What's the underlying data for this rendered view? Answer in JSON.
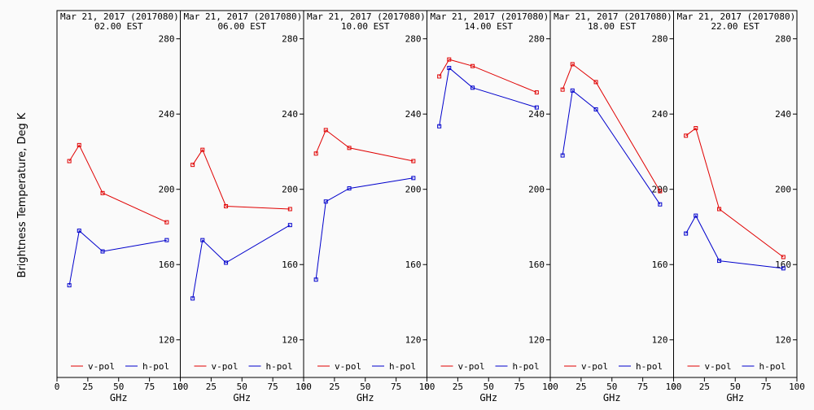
{
  "ylabel": "Brightness Temperature, Deg K",
  "xlabel": "GHz",
  "legend": {
    "v": "v-pol",
    "h": "h-pol"
  },
  "colors": {
    "v": "#e00000",
    "h": "#0000cc",
    "axis": "#000000",
    "background": "#fafafa"
  },
  "x_ticks": [
    "0",
    "25",
    "50",
    "75",
    "100"
  ],
  "y_ticks": [
    "120",
    "160",
    "200",
    "240",
    "280"
  ],
  "chart_data": [
    {
      "type": "line",
      "title": "Mar 21, 2017 (2017080)",
      "subtitle": "02.00 EST",
      "x": [
        10,
        18,
        37,
        89
      ],
      "xlim": [
        0,
        100
      ],
      "ylim": [
        100,
        295
      ],
      "series": [
        {
          "name": "v-pol",
          "values": [
            215,
            223.5,
            198,
            182.5
          ]
        },
        {
          "name": "h-pol",
          "values": [
            149,
            178,
            167,
            173
          ]
        }
      ]
    },
    {
      "type": "line",
      "title": "Mar 21, 2017 (2017080)",
      "subtitle": "06.00 EST",
      "x": [
        10,
        18,
        37,
        89
      ],
      "xlim": [
        0,
        100
      ],
      "ylim": [
        100,
        295
      ],
      "series": [
        {
          "name": "v-pol",
          "values": [
            213,
            221,
            191,
            189.5
          ]
        },
        {
          "name": "h-pol",
          "values": [
            142,
            173,
            161,
            181
          ]
        }
      ]
    },
    {
      "type": "line",
      "title": "Mar 21, 2017 (2017080)",
      "subtitle": "10.00 EST",
      "x": [
        10,
        18,
        37,
        89
      ],
      "xlim": [
        0,
        100
      ],
      "ylim": [
        100,
        295
      ],
      "series": [
        {
          "name": "v-pol",
          "values": [
            219,
            231.5,
            222,
            215
          ]
        },
        {
          "name": "h-pol",
          "values": [
            152,
            193.5,
            200.5,
            206
          ]
        }
      ]
    },
    {
      "type": "line",
      "title": "Mar 21, 2017 (2017080)",
      "subtitle": "14.00 EST",
      "x": [
        10,
        18,
        37,
        89
      ],
      "xlim": [
        0,
        100
      ],
      "ylim": [
        100,
        295
      ],
      "series": [
        {
          "name": "v-pol",
          "values": [
            260,
            269,
            265.5,
            251.5
          ]
        },
        {
          "name": "h-pol",
          "values": [
            233.5,
            264.5,
            254,
            243.5
          ]
        }
      ]
    },
    {
      "type": "line",
      "title": "Mar 21, 2017 (2017080)",
      "subtitle": "18.00 EST",
      "x": [
        10,
        18,
        37,
        89
      ],
      "xlim": [
        0,
        100
      ],
      "ylim": [
        100,
        295
      ],
      "series": [
        {
          "name": "v-pol",
          "values": [
            253,
            266.5,
            257,
            199
          ]
        },
        {
          "name": "h-pol",
          "values": [
            218,
            252.5,
            242.5,
            192
          ]
        }
      ]
    },
    {
      "type": "line",
      "title": "Mar 21, 2017 (2017080)",
      "subtitle": "22.00 EST",
      "x": [
        10,
        18,
        37,
        89
      ],
      "xlim": [
        0,
        100
      ],
      "ylim": [
        100,
        295
      ],
      "series": [
        {
          "name": "v-pol",
          "values": [
            228.5,
            232.5,
            189.5,
            164
          ]
        },
        {
          "name": "h-pol",
          "values": [
            176.5,
            186,
            162,
            158
          ]
        }
      ]
    }
  ]
}
